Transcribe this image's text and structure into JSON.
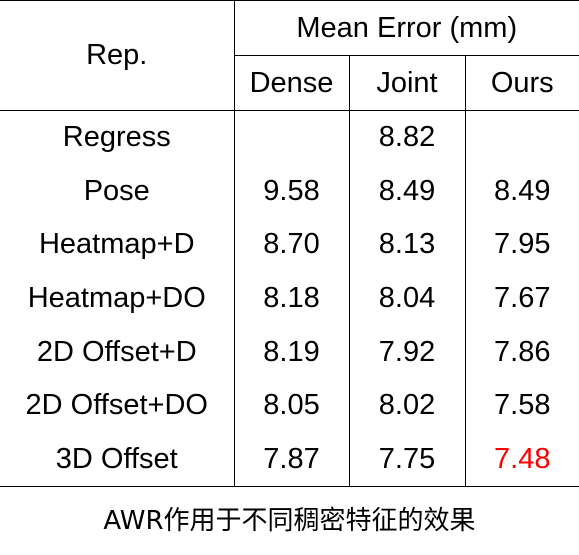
{
  "table": {
    "rep_header": "Rep.",
    "group_header": "Mean Error (mm)",
    "columns": [
      "Dense",
      "Joint",
      "Ours"
    ],
    "rows": [
      {
        "rep": "Regress",
        "dense": "",
        "joint": "8.82",
        "ours": ""
      },
      {
        "rep": "Pose",
        "dense": "9.58",
        "joint": "8.49",
        "ours": "8.49"
      },
      {
        "rep": "Heatmap+D",
        "dense": "8.70",
        "joint": "8.13",
        "ours": "7.95"
      },
      {
        "rep": "Heatmap+DO",
        "dense": "8.18",
        "joint": "8.04",
        "ours": "7.67"
      },
      {
        "rep": "2D Offset+D",
        "dense": "8.19",
        "joint": "7.92",
        "ours": "7.86"
      },
      {
        "rep": "2D Offset+DO",
        "dense": "8.05",
        "joint": "8.02",
        "ours": "7.58"
      },
      {
        "rep": "3D Offset",
        "dense": "7.87",
        "joint": "7.75",
        "ours": "7.48"
      }
    ],
    "highlight_color": "#ff0000"
  },
  "caption": "AWR作用于不同稠密特征的效果"
}
